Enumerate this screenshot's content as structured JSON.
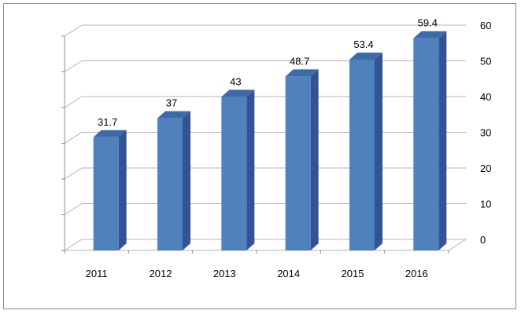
{
  "chart_data": {
    "type": "bar",
    "categories": [
      "2011",
      "2012",
      "2013",
      "2014",
      "2015",
      "2016"
    ],
    "values": [
      31.7,
      37,
      43,
      48.7,
      53.4,
      59.4
    ],
    "data_labels": [
      "31.7",
      "37",
      "43",
      "48.7",
      "53.4",
      "59.4"
    ],
    "y_ticks": [
      "0",
      "10",
      "20",
      "30",
      "40",
      "50",
      "60"
    ],
    "ylim": [
      0,
      60
    ],
    "grid": true,
    "style": "3d-column",
    "y_axis_side": "right",
    "colors": {
      "bar_front": "#4f81bd",
      "bar_side": "#2f5597",
      "bar_top": "#3d6aa8",
      "grid": "#b3b3b3",
      "axis": "#8c8c8c"
    }
  }
}
